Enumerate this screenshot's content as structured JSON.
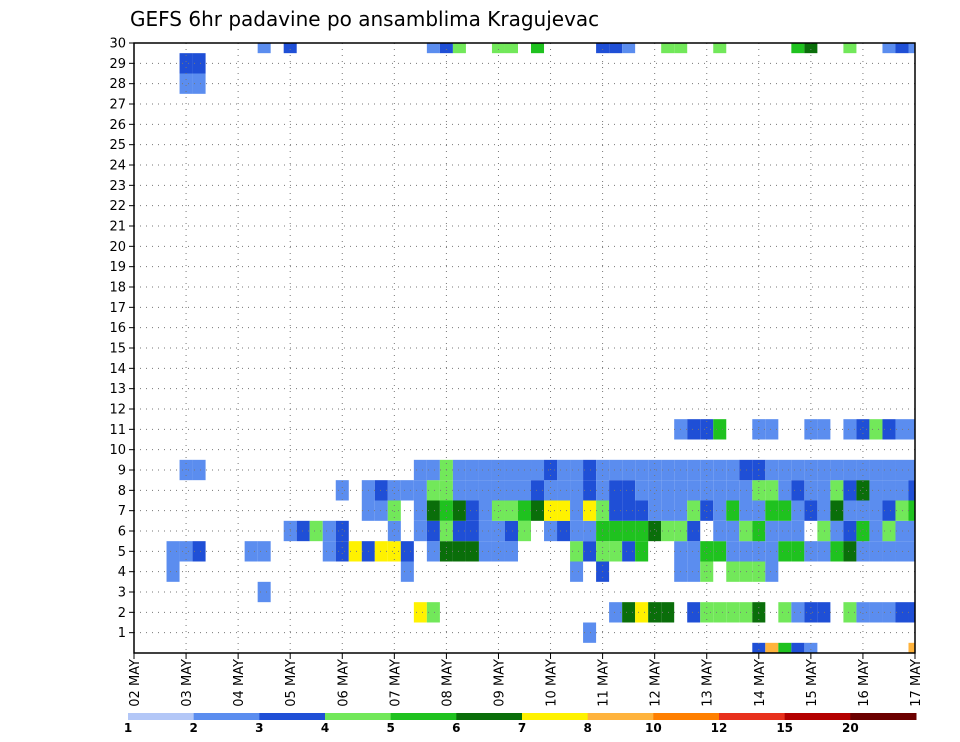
{
  "chart_data": {
    "type": "heatmap",
    "title": "GEFS 6hr padavine po ansamblima Kragujevac",
    "xlabel": "",
    "ylabel": "",
    "x_tick_labels": [
      "02 MAY",
      "03 MAY",
      "04 MAY",
      "05 MAY",
      "06 MAY",
      "07 MAY",
      "08 MAY",
      "09 MAY",
      "10 MAY",
      "11 MAY",
      "12 MAY",
      "13 MAY",
      "14 MAY",
      "15 MAY",
      "16 MAY",
      "17 MAY"
    ],
    "y_tick_labels": [
      "1",
      "2",
      "3",
      "4",
      "5",
      "6",
      "7",
      "8",
      "9",
      "10",
      "11",
      "12",
      "13",
      "14",
      "15",
      "16",
      "17",
      "18",
      "19",
      "20",
      "21",
      "22",
      "23",
      "24",
      "25",
      "26",
      "27",
      "28",
      "29",
      "30"
    ],
    "steps_per_day": 4,
    "n_steps": 61,
    "n_members": 31,
    "grid": true,
    "legend": "colorbar-bottom",
    "colorbar": {
      "labels": [
        "1",
        "2",
        "3",
        "4",
        "5",
        "6",
        "7",
        "8",
        "10",
        "12",
        "15",
        "20"
      ],
      "colors": [
        "#b3c7f7",
        "#5b8def",
        "#1f4fd6",
        "#72e85a",
        "#1fc21f",
        "#0a6e0a",
        "#fff200",
        "#ffb33c",
        "#ff7f00",
        "#e8301c",
        "#b30000",
        "#6b0000"
      ]
    },
    "cells": [
      [
        5,
        28,
        1
      ],
      [
        4,
        28,
        1
      ],
      [
        5,
        29,
        2
      ],
      [
        4,
        29,
        2
      ],
      [
        10,
        30,
        1
      ],
      [
        12,
        30,
        2
      ],
      [
        23,
        30,
        1
      ],
      [
        24,
        30,
        2
      ],
      [
        25,
        30,
        3
      ],
      [
        28,
        30,
        3
      ],
      [
        29,
        30,
        3
      ],
      [
        31,
        30,
        4
      ],
      [
        36,
        30,
        2
      ],
      [
        37,
        30,
        2
      ],
      [
        38,
        30,
        1
      ],
      [
        41,
        30,
        3
      ],
      [
        42,
        30,
        3
      ],
      [
        45,
        30,
        3
      ],
      [
        51,
        30,
        4
      ],
      [
        52,
        30,
        5
      ],
      [
        55,
        30,
        3
      ],
      [
        58,
        30,
        1
      ],
      [
        59,
        30,
        2
      ],
      [
        60,
        30,
        1
      ],
      [
        48,
        0,
        2
      ],
      [
        49,
        0,
        7
      ],
      [
        50,
        0,
        4
      ],
      [
        51,
        0,
        2
      ],
      [
        52,
        0,
        1
      ],
      [
        60,
        0,
        7
      ],
      [
        10,
        3,
        1
      ],
      [
        35,
        1,
        1
      ],
      [
        22,
        2,
        6
      ],
      [
        23,
        2,
        3
      ],
      [
        37,
        2,
        1
      ],
      [
        38,
        2,
        5
      ],
      [
        39,
        2,
        6
      ],
      [
        40,
        2,
        5
      ],
      [
        41,
        2,
        5
      ],
      [
        43,
        2,
        2
      ],
      [
        44,
        2,
        3
      ],
      [
        45,
        2,
        3
      ],
      [
        46,
        2,
        3
      ],
      [
        47,
        2,
        3
      ],
      [
        48,
        2,
        5
      ],
      [
        50,
        2,
        3
      ],
      [
        51,
        2,
        1
      ],
      [
        52,
        2,
        2
      ],
      [
        53,
        2,
        2
      ],
      [
        55,
        2,
        3
      ],
      [
        56,
        2,
        1
      ],
      [
        57,
        2,
        1
      ],
      [
        58,
        2,
        1
      ],
      [
        59,
        2,
        2
      ],
      [
        60,
        2,
        2
      ],
      [
        3,
        4,
        1
      ],
      [
        21,
        4,
        1
      ],
      [
        34,
        4,
        1
      ],
      [
        36,
        4,
        2
      ],
      [
        42,
        4,
        1
      ],
      [
        43,
        4,
        1
      ],
      [
        44,
        4,
        3
      ],
      [
        46,
        4,
        3
      ],
      [
        47,
        4,
        3
      ],
      [
        48,
        4,
        3
      ],
      [
        49,
        4,
        1
      ],
      [
        3,
        5,
        1
      ],
      [
        4,
        5,
        1
      ],
      [
        5,
        5,
        2
      ],
      [
        9,
        5,
        1
      ],
      [
        10,
        5,
        1
      ],
      [
        15,
        5,
        1
      ],
      [
        16,
        5,
        2
      ],
      [
        17,
        5,
        6
      ],
      [
        18,
        5,
        2
      ],
      [
        19,
        5,
        6
      ],
      [
        20,
        5,
        6
      ],
      [
        21,
        5,
        2
      ],
      [
        23,
        5,
        1
      ],
      [
        24,
        5,
        5
      ],
      [
        25,
        5,
        5
      ],
      [
        26,
        5,
        5
      ],
      [
        27,
        5,
        1
      ],
      [
        28,
        5,
        1
      ],
      [
        29,
        5,
        1
      ],
      [
        34,
        5,
        3
      ],
      [
        35,
        5,
        2
      ],
      [
        36,
        5,
        3
      ],
      [
        37,
        5,
        3
      ],
      [
        38,
        5,
        2
      ],
      [
        39,
        5,
        4
      ],
      [
        42,
        5,
        1
      ],
      [
        43,
        5,
        1
      ],
      [
        44,
        5,
        4
      ],
      [
        45,
        5,
        4
      ],
      [
        46,
        5,
        1
      ],
      [
        47,
        5,
        1
      ],
      [
        48,
        5,
        1
      ],
      [
        49,
        5,
        1
      ],
      [
        50,
        5,
        4
      ],
      [
        51,
        5,
        4
      ],
      [
        52,
        5,
        1
      ],
      [
        53,
        5,
        1
      ],
      [
        54,
        5,
        4
      ],
      [
        55,
        5,
        5
      ],
      [
        56,
        5,
        1
      ],
      [
        57,
        5,
        1
      ],
      [
        58,
        5,
        1
      ],
      [
        59,
        5,
        1
      ],
      [
        60,
        5,
        1
      ],
      [
        42,
        11,
        1
      ],
      [
        43,
        11,
        2
      ],
      [
        44,
        11,
        2
      ],
      [
        45,
        11,
        4
      ],
      [
        48,
        11,
        1
      ],
      [
        49,
        11,
        1
      ],
      [
        52,
        11,
        1
      ],
      [
        53,
        11,
        1
      ],
      [
        55,
        11,
        1
      ],
      [
        56,
        11,
        2
      ],
      [
        57,
        11,
        3
      ],
      [
        58,
        11,
        2
      ],
      [
        59,
        11,
        1
      ],
      [
        60,
        11,
        1
      ],
      [
        12,
        6,
        1
      ],
      [
        13,
        6,
        2
      ],
      [
        14,
        6,
        3
      ],
      [
        15,
        6,
        1
      ],
      [
        16,
        6,
        2
      ],
      [
        20,
        6,
        1
      ],
      [
        22,
        6,
        1
      ],
      [
        23,
        6,
        2
      ],
      [
        24,
        6,
        3
      ],
      [
        25,
        6,
        2
      ],
      [
        26,
        6,
        2
      ],
      [
        27,
        6,
        1
      ],
      [
        28,
        6,
        1
      ],
      [
        29,
        6,
        2
      ],
      [
        30,
        6,
        3
      ],
      [
        32,
        6,
        1
      ],
      [
        33,
        6,
        2
      ],
      [
        34,
        6,
        1
      ],
      [
        35,
        6,
        1
      ],
      [
        36,
        6,
        4
      ],
      [
        37,
        6,
        4
      ],
      [
        38,
        6,
        4
      ],
      [
        39,
        6,
        4
      ],
      [
        40,
        6,
        5
      ],
      [
        41,
        6,
        3
      ],
      [
        42,
        6,
        3
      ],
      [
        43,
        6,
        2
      ],
      [
        45,
        6,
        1
      ],
      [
        46,
        6,
        1
      ],
      [
        47,
        6,
        3
      ],
      [
        48,
        6,
        4
      ],
      [
        49,
        6,
        1
      ],
      [
        50,
        6,
        1
      ],
      [
        51,
        6,
        1
      ],
      [
        53,
        6,
        3
      ],
      [
        54,
        6,
        1
      ],
      [
        55,
        6,
        2
      ],
      [
        56,
        6,
        4
      ],
      [
        57,
        6,
        1
      ],
      [
        58,
        6,
        3
      ],
      [
        59,
        6,
        1
      ],
      [
        60,
        6,
        1
      ],
      [
        18,
        7,
        1
      ],
      [
        19,
        7,
        1
      ],
      [
        20,
        7,
        3
      ],
      [
        22,
        7,
        1
      ],
      [
        23,
        7,
        5
      ],
      [
        24,
        7,
        4
      ],
      [
        25,
        7,
        5
      ],
      [
        26,
        7,
        2
      ],
      [
        27,
        7,
        1
      ],
      [
        28,
        7,
        3
      ],
      [
        29,
        7,
        3
      ],
      [
        30,
        7,
        4
      ],
      [
        31,
        7,
        5
      ],
      [
        32,
        7,
        6
      ],
      [
        33,
        7,
        6
      ],
      [
        34,
        7,
        1
      ],
      [
        35,
        7,
        6
      ],
      [
        36,
        7,
        3
      ],
      [
        37,
        7,
        2
      ],
      [
        38,
        7,
        2
      ],
      [
        39,
        7,
        2
      ],
      [
        40,
        7,
        1
      ],
      [
        41,
        7,
        1
      ],
      [
        42,
        7,
        1
      ],
      [
        43,
        7,
        3
      ],
      [
        44,
        7,
        2
      ],
      [
        45,
        7,
        1
      ],
      [
        46,
        7,
        4
      ],
      [
        47,
        7,
        1
      ],
      [
        48,
        7,
        1
      ],
      [
        49,
        7,
        4
      ],
      [
        50,
        7,
        4
      ],
      [
        51,
        7,
        1
      ],
      [
        52,
        7,
        2
      ],
      [
        53,
        7,
        1
      ],
      [
        54,
        7,
        5
      ],
      [
        55,
        7,
        1
      ],
      [
        56,
        7,
        1
      ],
      [
        57,
        7,
        1
      ],
      [
        58,
        7,
        2
      ],
      [
        59,
        7,
        3
      ],
      [
        60,
        7,
        4
      ],
      [
        16,
        8,
        1
      ],
      [
        18,
        8,
        1
      ],
      [
        19,
        8,
        2
      ],
      [
        20,
        8,
        1
      ],
      [
        21,
        8,
        1
      ],
      [
        22,
        8,
        1
      ],
      [
        23,
        8,
        3
      ],
      [
        24,
        8,
        3
      ],
      [
        25,
        8,
        1
      ],
      [
        26,
        8,
        1
      ],
      [
        27,
        8,
        1
      ],
      [
        28,
        8,
        1
      ],
      [
        29,
        8,
        1
      ],
      [
        30,
        8,
        1
      ],
      [
        31,
        8,
        2
      ],
      [
        32,
        8,
        1
      ],
      [
        33,
        8,
        1
      ],
      [
        34,
        8,
        1
      ],
      [
        35,
        8,
        2
      ],
      [
        36,
        8,
        1
      ],
      [
        37,
        8,
        2
      ],
      [
        38,
        8,
        2
      ],
      [
        39,
        8,
        1
      ],
      [
        40,
        8,
        1
      ],
      [
        41,
        8,
        1
      ],
      [
        42,
        8,
        1
      ],
      [
        43,
        8,
        1
      ],
      [
        44,
        8,
        1
      ],
      [
        45,
        8,
        1
      ],
      [
        46,
        8,
        1
      ],
      [
        47,
        8,
        1
      ],
      [
        48,
        8,
        3
      ],
      [
        49,
        8,
        3
      ],
      [
        50,
        8,
        1
      ],
      [
        51,
        8,
        2
      ],
      [
        52,
        8,
        1
      ],
      [
        53,
        8,
        1
      ],
      [
        54,
        8,
        3
      ],
      [
        55,
        8,
        2
      ],
      [
        56,
        8,
        5
      ],
      [
        57,
        8,
        1
      ],
      [
        58,
        8,
        1
      ],
      [
        59,
        8,
        1
      ],
      [
        60,
        8,
        2
      ],
      [
        4,
        9,
        1
      ],
      [
        5,
        9,
        1
      ],
      [
        22,
        9,
        1
      ],
      [
        23,
        9,
        1
      ],
      [
        24,
        9,
        3
      ],
      [
        25,
        9,
        1
      ],
      [
        26,
        9,
        1
      ],
      [
        27,
        9,
        1
      ],
      [
        28,
        9,
        1
      ],
      [
        29,
        9,
        1
      ],
      [
        30,
        9,
        1
      ],
      [
        31,
        9,
        1
      ],
      [
        32,
        9,
        2
      ],
      [
        33,
        9,
        1
      ],
      [
        34,
        9,
        1
      ],
      [
        35,
        9,
        2
      ],
      [
        36,
        9,
        1
      ],
      [
        37,
        9,
        1
      ],
      [
        38,
        9,
        1
      ],
      [
        39,
        9,
        1
      ],
      [
        40,
        9,
        1
      ],
      [
        41,
        9,
        1
      ],
      [
        42,
        9,
        1
      ],
      [
        43,
        9,
        1
      ],
      [
        44,
        9,
        1
      ],
      [
        45,
        9,
        1
      ],
      [
        46,
        9,
        1
      ],
      [
        47,
        9,
        2
      ],
      [
        48,
        9,
        2
      ],
      [
        49,
        9,
        1
      ],
      [
        50,
        9,
        1
      ],
      [
        51,
        9,
        1
      ],
      [
        52,
        9,
        1
      ],
      [
        53,
        9,
        1
      ],
      [
        54,
        9,
        1
      ],
      [
        55,
        9,
        1
      ],
      [
        56,
        9,
        1
      ],
      [
        57,
        9,
        1
      ],
      [
        58,
        9,
        1
      ],
      [
        59,
        9,
        1
      ],
      [
        60,
        9,
        1
      ]
    ]
  }
}
